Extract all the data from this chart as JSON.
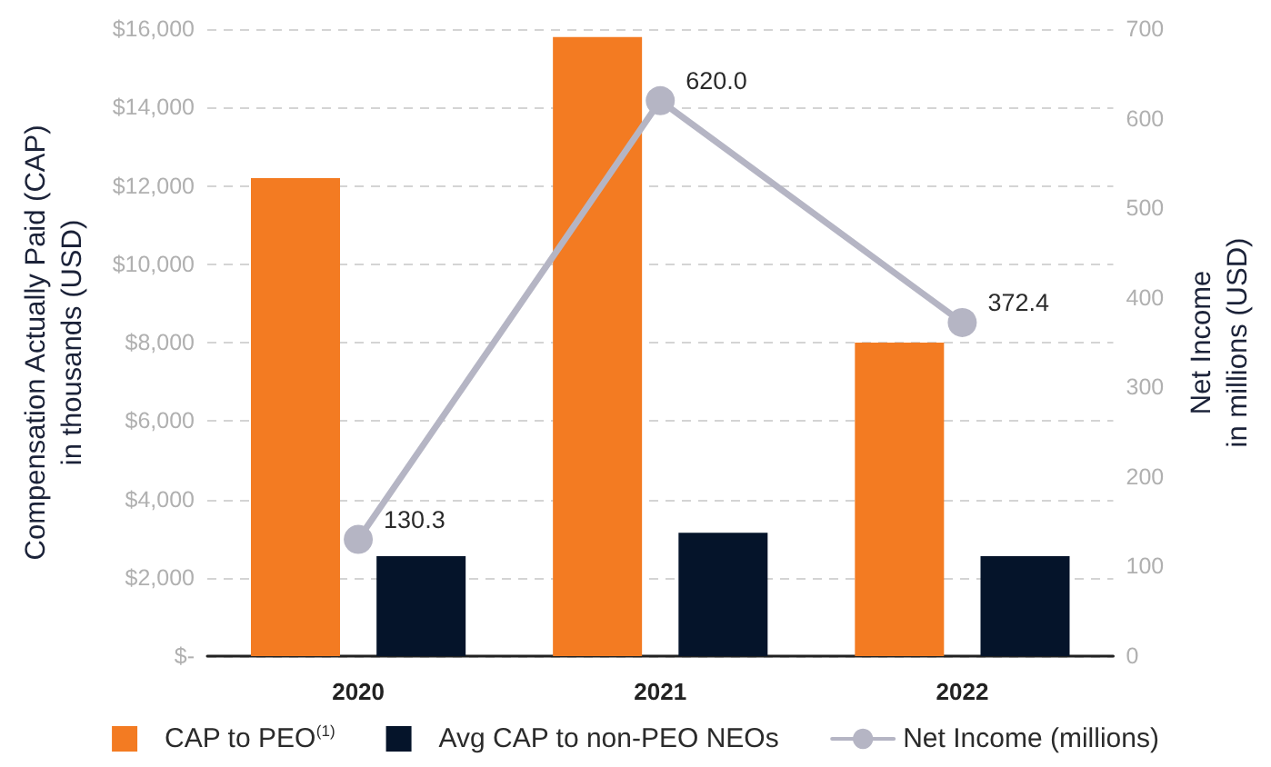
{
  "chart_data": {
    "type": "bar",
    "categories": [
      "2020",
      "2021",
      "2022"
    ],
    "ylabel": "Compensation Actually Paid (CAP)\nin thousands (USD)",
    "y2label": "Net Income\nin millions (USD)",
    "series": [
      {
        "name": "CAP to PEO$^{(1)}$",
        "color": "#f37b22",
        "values": [
          12200,
          15800,
          8000
        ]
      },
      {
        "name": "Avg CAP to non-PEO NEOs",
        "color": "#05142a",
        "values": [
          2550,
          3150,
          2550
        ]
      },
      {
        "name": "Net Income (millions)",
        "type": "line",
        "axis": "y2",
        "color": "#b5b5c4",
        "values": [
          130.3,
          620.0,
          372.4
        ],
        "value_labels": [
          "130.3",
          "620.0",
          "372.4"
        ]
      }
    ],
    "ylim": [
      0,
      16000
    ],
    "yticks": [
      {
        "value": 0,
        "label": "$-"
      },
      {
        "value": 2000,
        "label": "$2,000"
      },
      {
        "value": 4000,
        "label": "$4,000"
      },
      {
        "value": 6000,
        "label": "$6,000"
      },
      {
        "value": 8000,
        "label": "$8,000"
      },
      {
        "value": 10000,
        "label": "$10,000"
      },
      {
        "value": 12000,
        "label": "$12,000"
      },
      {
        "value": 14000,
        "label": "$14,000"
      },
      {
        "value": 16000,
        "label": "$16,000"
      }
    ],
    "y2lim": [
      0,
      700
    ],
    "y2ticks": [
      0,
      100,
      200,
      300,
      400,
      500,
      600,
      700
    ],
    "grid": "y",
    "legend": "bottom",
    "marker": "circle"
  }
}
